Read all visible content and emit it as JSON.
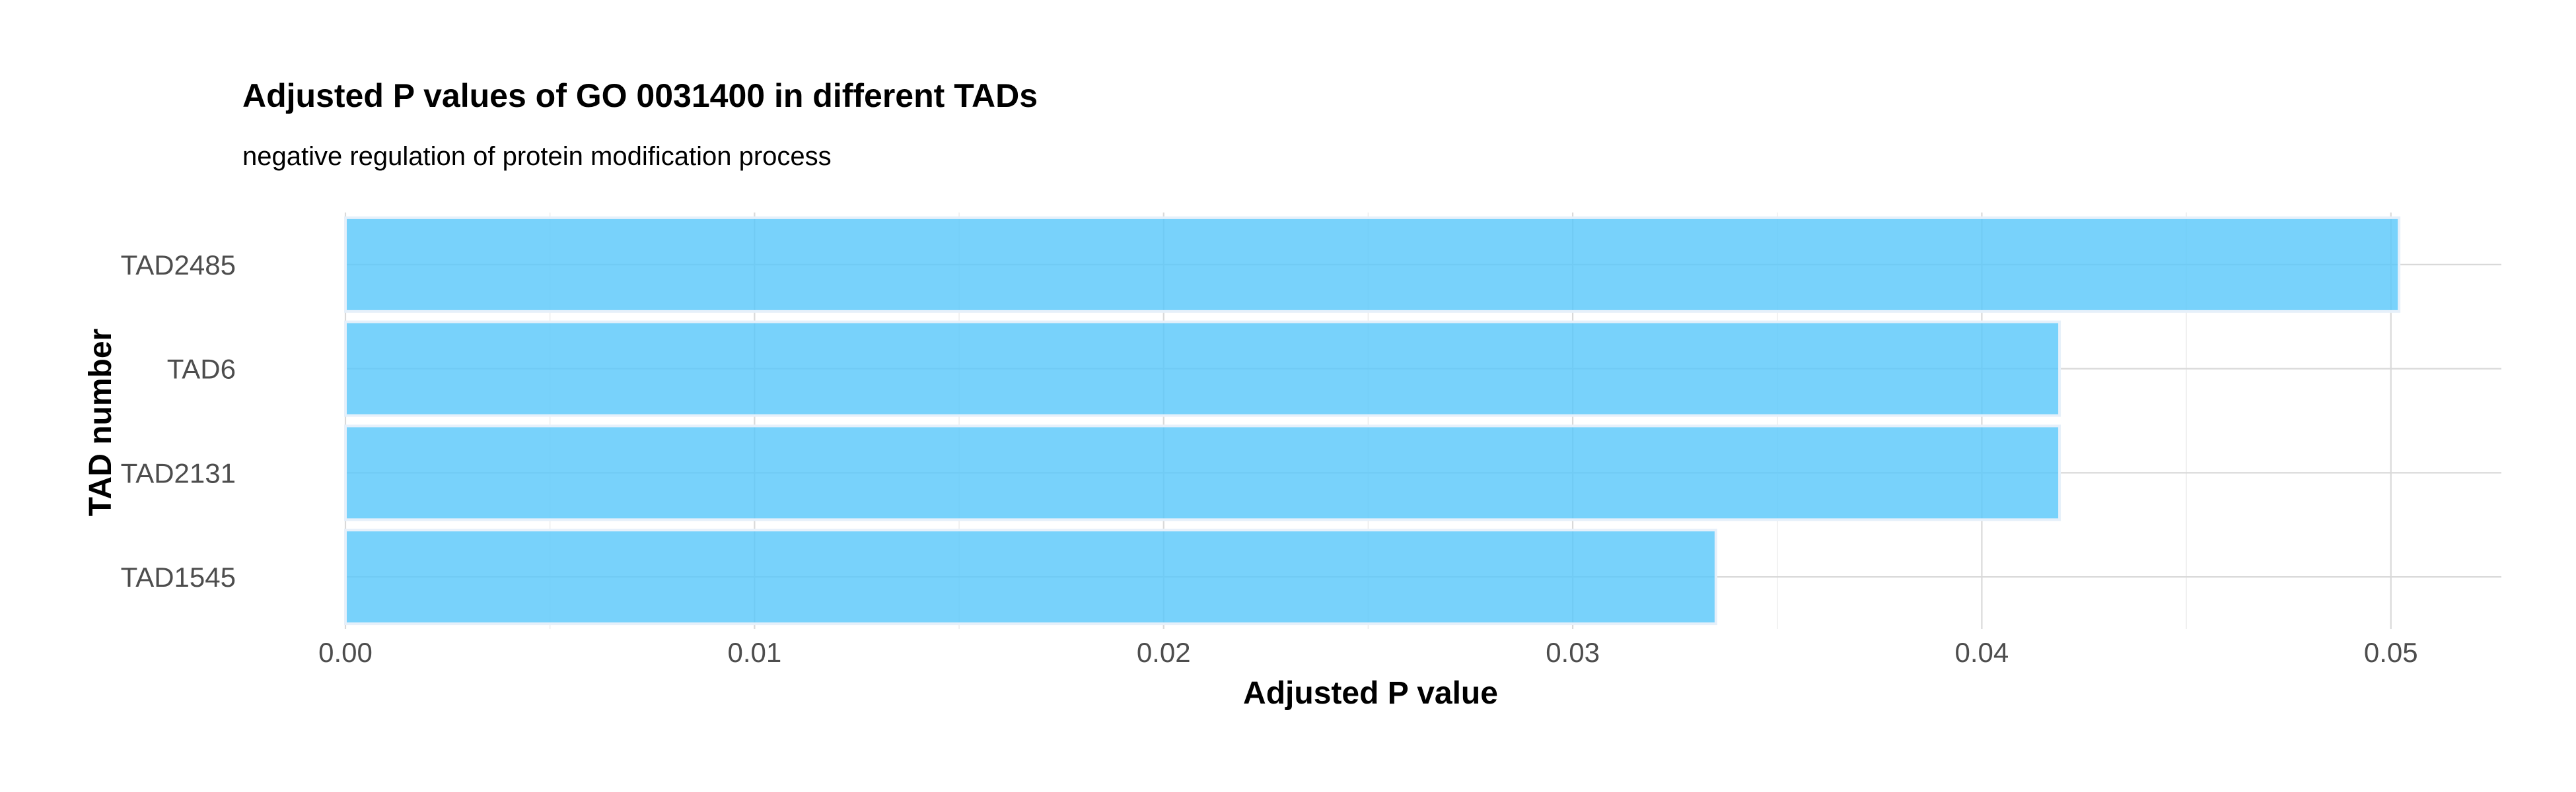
{
  "chart_data": {
    "type": "bar",
    "orientation": "horizontal",
    "title": "Adjusted P values of GO 0031400 in different TADs",
    "subtitle": "negative regulation of protein modification process",
    "xlabel": "Adjusted P value",
    "ylabel": "TAD number",
    "categories": [
      "TAD2485",
      "TAD6",
      "TAD2131",
      "TAD1545"
    ],
    "values": [
      0.0502,
      0.0419,
      0.0419,
      0.0335
    ],
    "xlim": [
      0,
      0.0527
    ],
    "xticks": [
      "0.00",
      "0.01",
      "0.02",
      "0.03",
      "0.04",
      "0.05"
    ],
    "xtick_values": [
      0,
      0.01,
      0.02,
      0.03,
      0.04,
      0.05
    ],
    "bar_color": "#5ac8fa",
    "grid": true,
    "legend": "none"
  }
}
